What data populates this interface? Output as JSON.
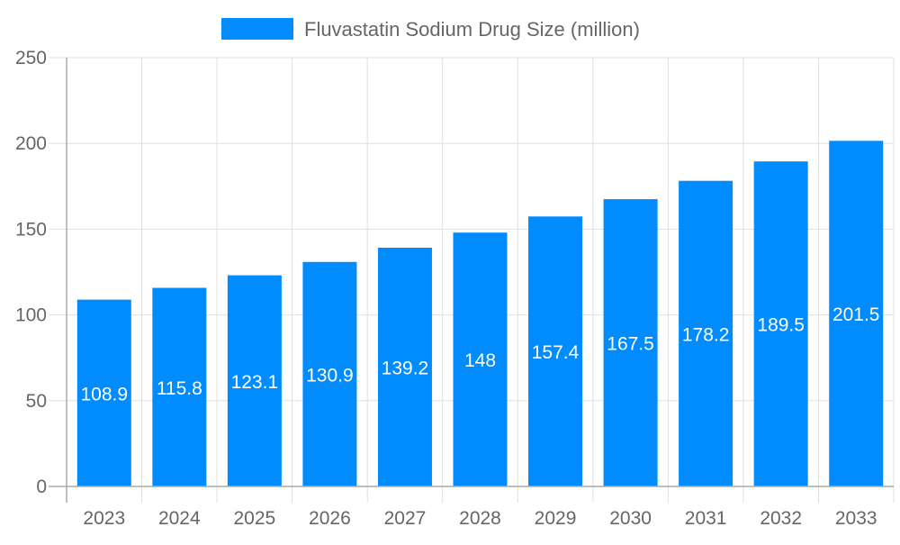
{
  "chart_data": {
    "type": "bar",
    "title": "",
    "xlabel": "",
    "ylabel": "",
    "categories": [
      "2023",
      "2024",
      "2025",
      "2026",
      "2027",
      "2028",
      "2029",
      "2030",
      "2031",
      "2032",
      "2033"
    ],
    "series": [
      {
        "name": "Fluvastatin Sodium Drug Size (million)",
        "values": [
          108.9,
          115.8,
          123.1,
          130.9,
          139.2,
          148,
          157.4,
          167.5,
          178.2,
          189.5,
          201.5
        ],
        "color": "#008cff"
      }
    ],
    "data_labels": [
      "108.9",
      "115.8",
      "123.1",
      "130.9",
      "139.2",
      "148",
      "157.4",
      "167.5",
      "178.2",
      "189.5",
      "201.5"
    ],
    "ylim": [
      0,
      250
    ],
    "yticks": [
      "0",
      "50",
      "100",
      "150",
      "200",
      "250"
    ],
    "grid": true,
    "legend": "top"
  }
}
